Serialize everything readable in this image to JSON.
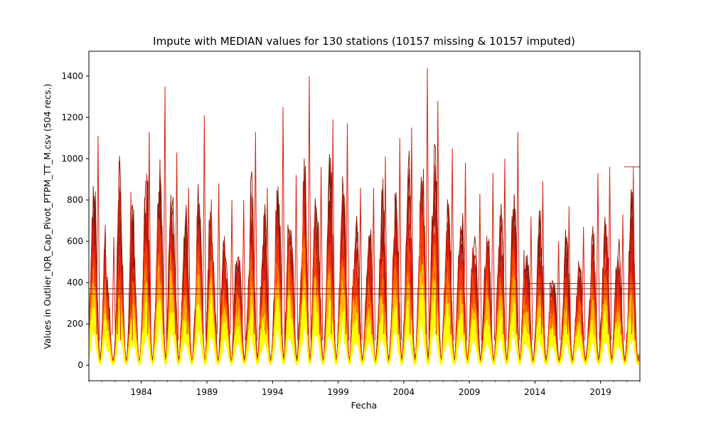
{
  "chart_data": {
    "type": "line",
    "title": "Impute with MEDIAN values for 130 stations (10157 missing & 10157 imputed)",
    "xlabel": "Fecha",
    "ylabel": "Values in Outlier_IQR_Cap_Pivot_PTPM_TT_M.csv (504 recs.)",
    "x_range": [
      "1980-01",
      "2021-12"
    ],
    "xlim": [
      1980.0,
      2022.0
    ],
    "ylim": [
      -75,
      1520
    ],
    "x_tick_values": [
      1984,
      1989,
      1994,
      1999,
      2004,
      2009,
      2014,
      2019
    ],
    "x_tick_labels": [
      "1984",
      "1989",
      "1994",
      "1999",
      "2004",
      "2009",
      "2014",
      "2019"
    ],
    "y_tick_values": [
      0,
      200,
      400,
      600,
      800,
      1000,
      1200,
      1400
    ],
    "y_tick_labels": [
      "0",
      "200",
      "400",
      "600",
      "800",
      "1000",
      "1200",
      "1400"
    ],
    "grid": false,
    "legend": "none",
    "series_count": 130,
    "colormap": [
      "#7a1a0a",
      "#c0180a",
      "#e02010",
      "#ff4000",
      "#ff8000",
      "#ffc000",
      "#ffff00"
    ],
    "records": 504,
    "missing": 10157,
    "imputed": 10157,
    "annual_peaks": [
      {
        "x": 1980.7,
        "y": 1110
      },
      {
        "x": 1981.9,
        "y": 620
      },
      {
        "x": 1982.3,
        "y": 990
      },
      {
        "x": 1983.2,
        "y": 840
      },
      {
        "x": 1984.6,
        "y": 1130
      },
      {
        "x": 1985.8,
        "y": 1350
      },
      {
        "x": 1986.7,
        "y": 1030
      },
      {
        "x": 1987.6,
        "y": 860
      },
      {
        "x": 1988.8,
        "y": 1210
      },
      {
        "x": 1989.9,
        "y": 880
      },
      {
        "x": 1990.9,
        "y": 800
      },
      {
        "x": 1991.8,
        "y": 800
      },
      {
        "x": 1992.7,
        "y": 1130
      },
      {
        "x": 1993.6,
        "y": 860
      },
      {
        "x": 1994.8,
        "y": 1250
      },
      {
        "x": 1995.8,
        "y": 920
      },
      {
        "x": 1996.8,
        "y": 1400
      },
      {
        "x": 1997.7,
        "y": 960
      },
      {
        "x": 1998.6,
        "y": 1190
      },
      {
        "x": 1999.7,
        "y": 1170
      },
      {
        "x": 2000.7,
        "y": 860
      },
      {
        "x": 2001.7,
        "y": 860
      },
      {
        "x": 2002.6,
        "y": 1010
      },
      {
        "x": 2003.7,
        "y": 1100
      },
      {
        "x": 2004.6,
        "y": 1150
      },
      {
        "x": 2005.8,
        "y": 1440
      },
      {
        "x": 2006.6,
        "y": 1280
      },
      {
        "x": 2007.7,
        "y": 1050
      },
      {
        "x": 2008.7,
        "y": 980
      },
      {
        "x": 2009.8,
        "y": 830
      },
      {
        "x": 2010.8,
        "y": 930
      },
      {
        "x": 2011.7,
        "y": 1000
      },
      {
        "x": 2012.7,
        "y": 1130
      },
      {
        "x": 2013.7,
        "y": 720
      },
      {
        "x": 2014.6,
        "y": 890
      },
      {
        "x": 2015.8,
        "y": 600
      },
      {
        "x": 2016.6,
        "y": 770
      },
      {
        "x": 2017.7,
        "y": 670
      },
      {
        "x": 2018.8,
        "y": 930
      },
      {
        "x": 2019.7,
        "y": 960
      },
      {
        "x": 2020.7,
        "y": 730
      },
      {
        "x": 2021.5,
        "y": 960
      }
    ],
    "flat_segments": [
      {
        "x_start": 1980.0,
        "x_end": 2022.0,
        "y": 370
      },
      {
        "x_start": 1980.0,
        "x_end": 2022.0,
        "y": 345
      },
      {
        "x_start": 2013.6,
        "x_end": 2022.0,
        "y": 395
      },
      {
        "x_start": 2020.8,
        "x_end": 2022.0,
        "y": 960
      }
    ]
  }
}
